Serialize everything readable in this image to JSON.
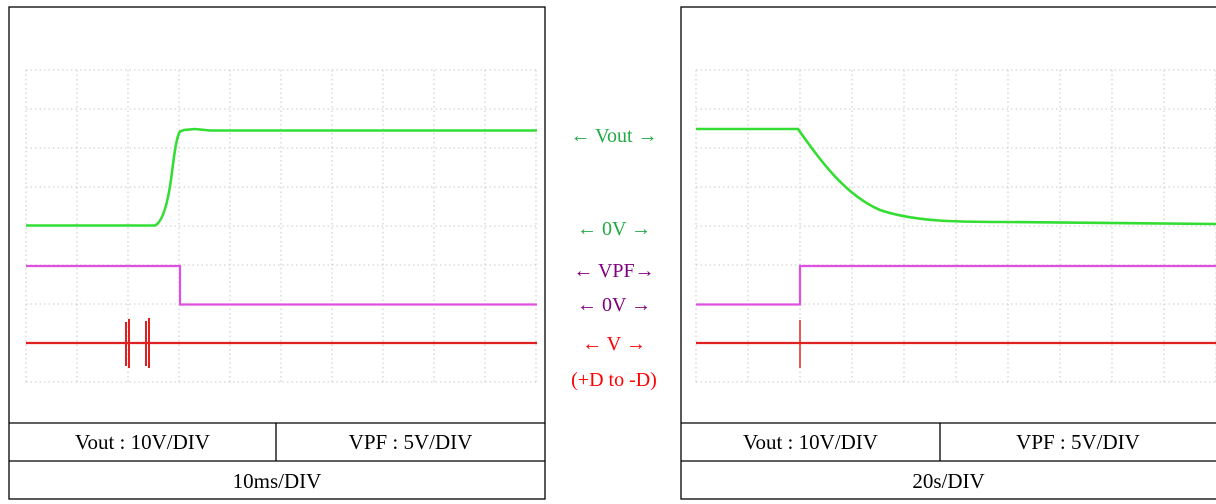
{
  "colors": {
    "vout": "#33dd33",
    "vpf": "#e050e0",
    "v": "#e02020",
    "vout_label": "#22aa44",
    "vpf_label": "#800080",
    "v_label": "#ff0000",
    "grid": "#b8b8b8"
  },
  "left_panel": {
    "scale_vout": "Vout : 10V/DIV",
    "scale_vpf": "VPF : 5V/DIV",
    "timebase": "10ms/DIV"
  },
  "right_panel": {
    "scale_vout": "Vout : 10V/DIV",
    "scale_vpf": "VPF : 5V/DIV",
    "timebase": "20s/DIV"
  },
  "center_labels": {
    "vout": "← Vout →",
    "vout_zero": "←  0V  →",
    "vpf": "← VPF→",
    "vpf_zero": "←  0V  →",
    "v": "←  V  →",
    "v_range": "(+D to -D)"
  }
}
